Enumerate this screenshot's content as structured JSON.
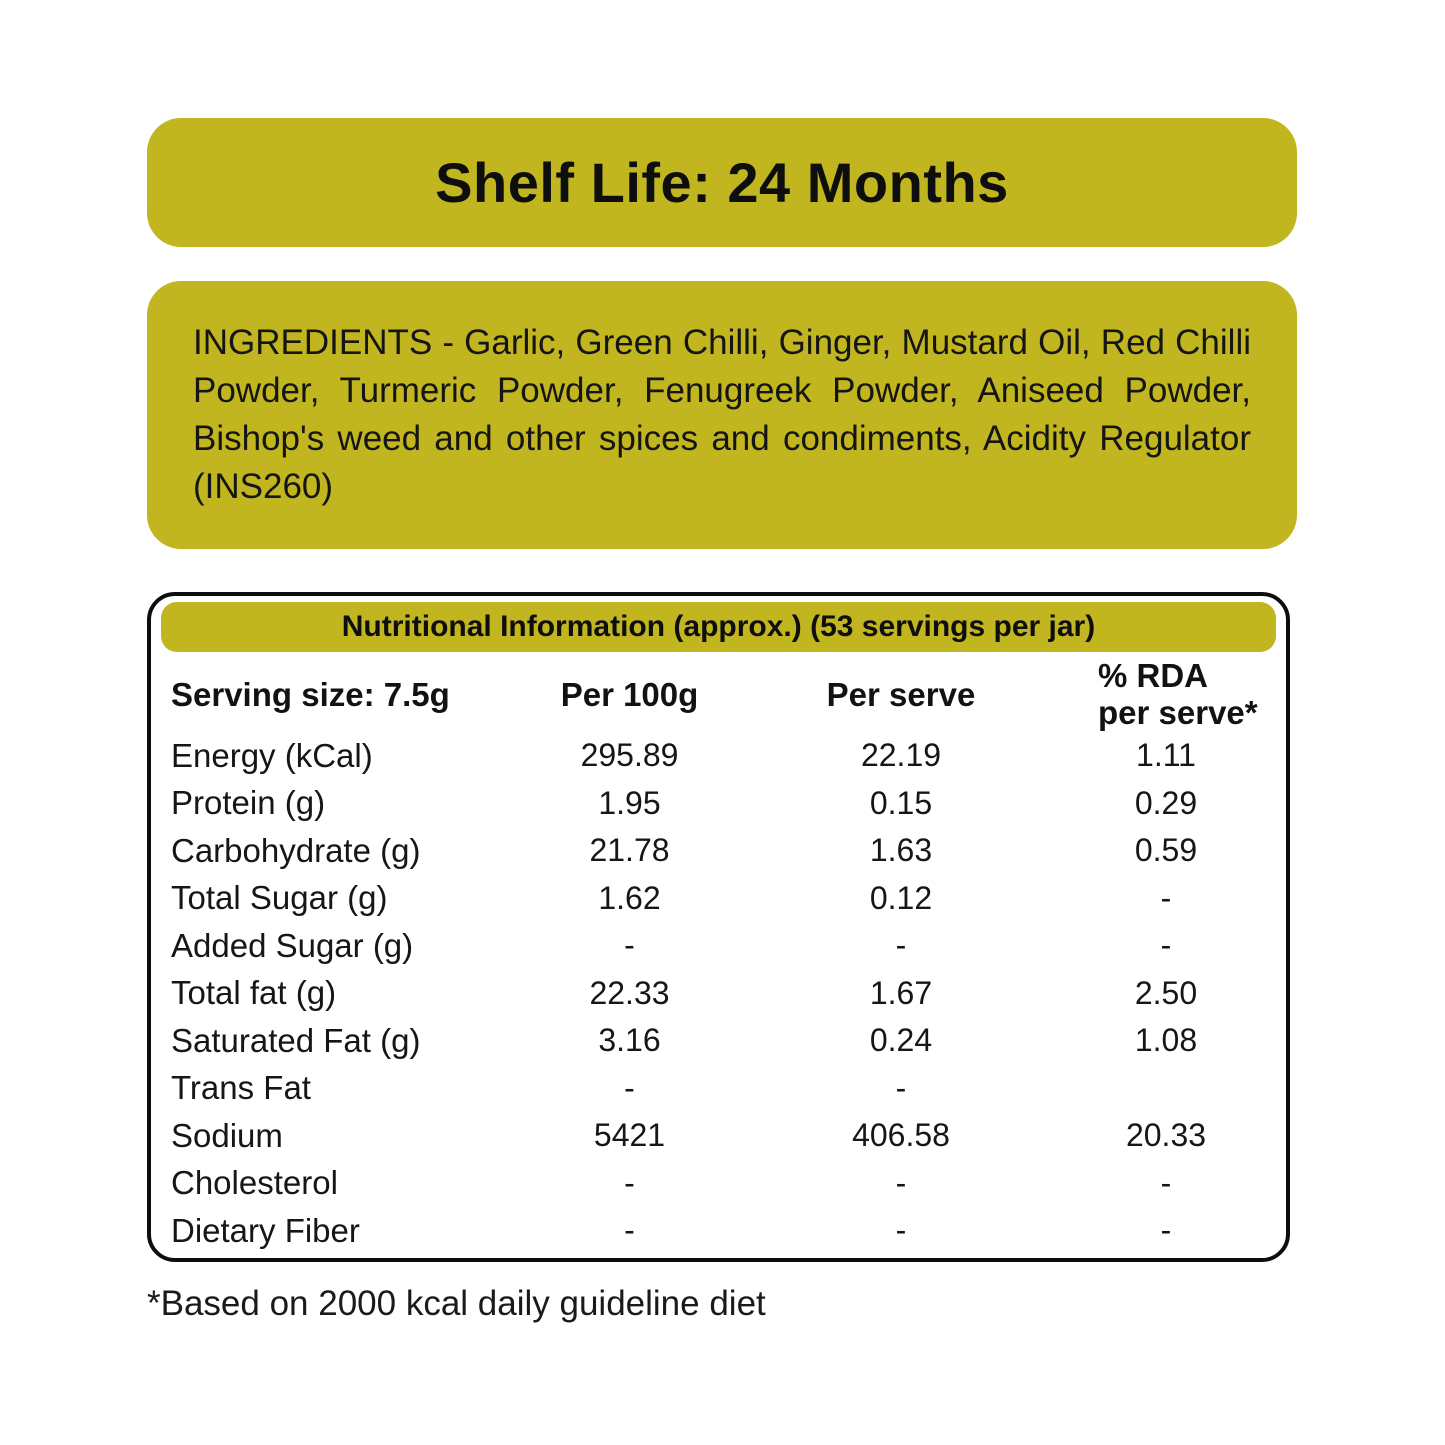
{
  "shelf_life_banner": {
    "text": "Shelf Life: 24 Months"
  },
  "ingredients_box": {
    "text": "INGREDIENTS - Garlic, Green Chilli, Ginger, Mustard Oil, Red Chilli Powder, Turmeric Powder, Fenugreek Powder, Aniseed Powder, Bishop's weed and other spices and condiments, Acidity Regulator (INS260)"
  },
  "nutrition_table": {
    "title": "Nutritional Information (approx.) (53 servings per jar)",
    "columns": [
      "Serving size: 7.5g",
      "Per 100g",
      "Per serve",
      "% RDA\nper serve*"
    ],
    "rows": [
      {
        "label": "Energy (kCal)",
        "per_100g": "295.89",
        "per_serve": "22.19",
        "rda": "1.11"
      },
      {
        "label": "Protein (g)",
        "per_100g": "1.95",
        "per_serve": "0.15",
        "rda": "0.29"
      },
      {
        "label": "Carbohydrate (g)",
        "per_100g": "21.78",
        "per_serve": "1.63",
        "rda": "0.59"
      },
      {
        "label": "Total Sugar (g)",
        "per_100g": "1.62",
        "per_serve": "0.12",
        "rda": "-"
      },
      {
        "label": "Added Sugar (g)",
        "per_100g": "-",
        "per_serve": "-",
        "rda": "-"
      },
      {
        "label": "Total fat (g)",
        "per_100g": "22.33",
        "per_serve": "1.67",
        "rda": "2.50"
      },
      {
        "label": "Saturated Fat (g)",
        "per_100g": "3.16",
        "per_serve": "0.24",
        "rda": "1.08"
      },
      {
        "label": "Trans Fat",
        "per_100g": "-",
        "per_serve": "-",
        "rda": ""
      },
      {
        "label": "Sodium",
        "per_100g": "5421",
        "per_serve": "406.58",
        "rda": "20.33"
      },
      {
        "label": "Cholesterol",
        "per_100g": "-",
        "per_serve": "-",
        "rda": "-"
      },
      {
        "label": "Dietary Fiber",
        "per_100g": "-",
        "per_serve": "-",
        "rda": "-"
      }
    ]
  },
  "footnote": {
    "text": "*Based on 2000 kcal daily guideline diet"
  },
  "colors": {
    "accent_olive": "#c1b520",
    "text": "#121212",
    "background": "#ffffff"
  }
}
